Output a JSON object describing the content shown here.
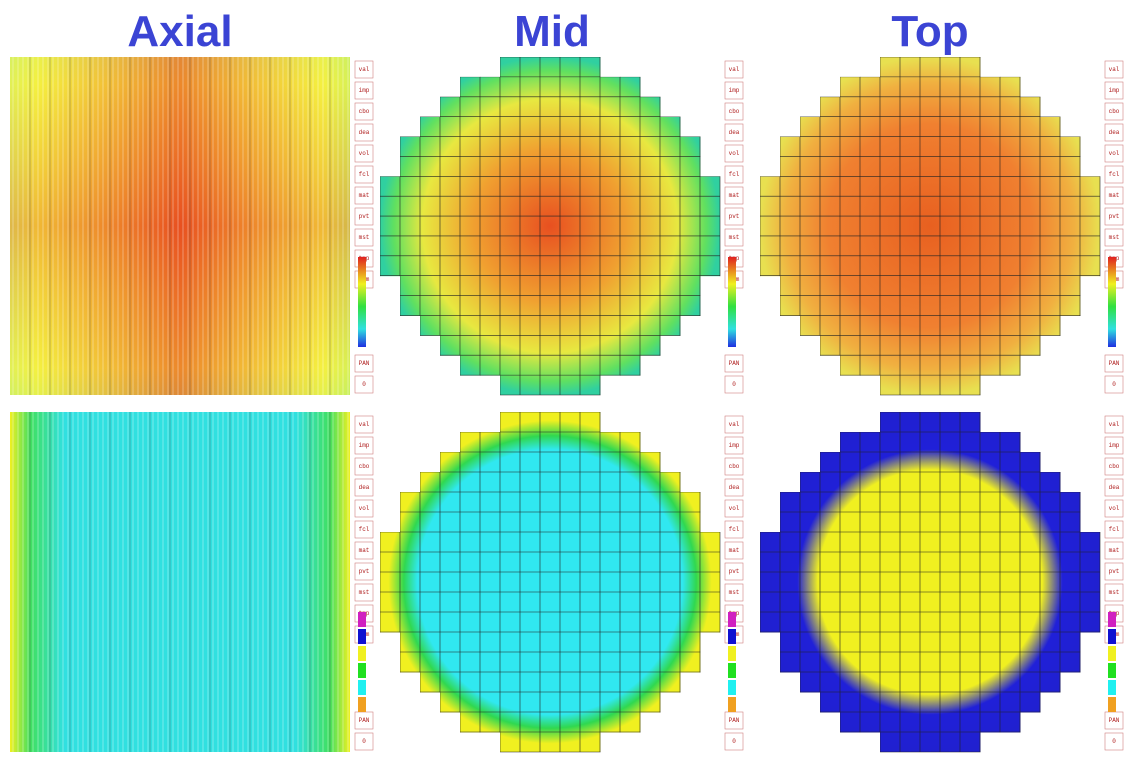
{
  "titles": [
    "Axial",
    "Mid",
    "Top"
  ],
  "side_menu": {
    "items": [
      "val",
      "imp",
      "cbo",
      "dea",
      "vol",
      "fcl",
      "mat",
      "pvt",
      "mst",
      "tmp",
      "vcm"
    ],
    "footer": [
      "PAN",
      "0"
    ]
  }
}
